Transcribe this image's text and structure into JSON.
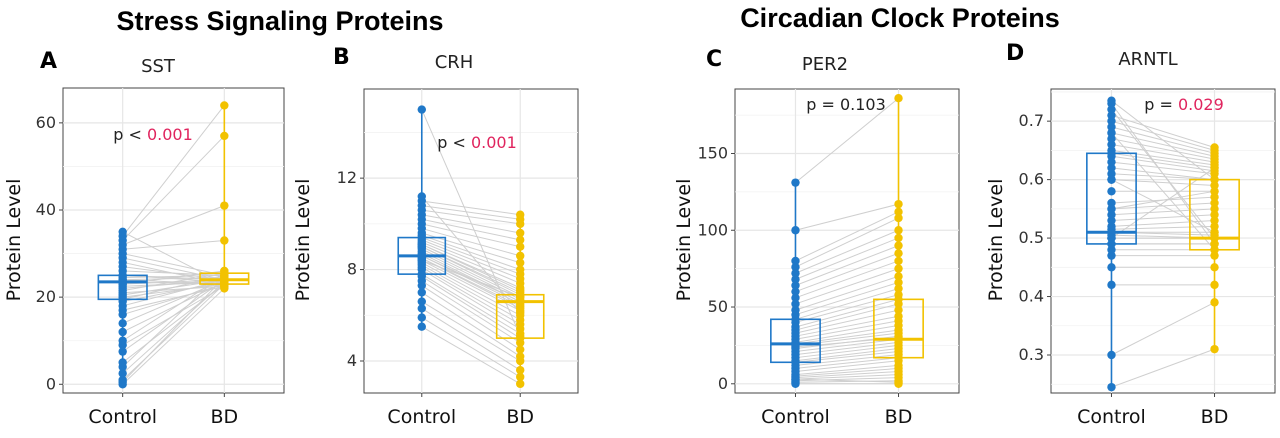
{
  "group_titles": [
    "Stress Signaling Proteins",
    "Circadian Clock Proteins"
  ],
  "colors": {
    "Control": "#1f78c8",
    "BD": "#f2c200",
    "p_sig": "#e0245e",
    "p_text": "#222222",
    "pair_line": "#cfcfcf"
  },
  "chart_data": [
    {
      "type": "box+paired-scatter",
      "panel": "A",
      "title": "SST",
      "xlabel": "",
      "ylabel": "Protein Level",
      "categories": [
        "Control",
        "BD"
      ],
      "ylim": [
        -2,
        68
      ],
      "yticks": [
        0,
        20,
        40,
        60
      ],
      "p_prefix": "p < ",
      "p_value": "0.001",
      "p_significant": true,
      "box": {
        "Control": {
          "min": 0,
          "q1": 19.5,
          "median": 23.5,
          "q3": 25,
          "max": 35
        },
        "BD": {
          "min": 22,
          "q1": 23,
          "median": 24,
          "q3": 25.5,
          "max": 64
        }
      },
      "series": [
        {
          "name": "Control",
          "values": [
            0,
            0.5,
            1,
            2.5,
            4,
            5,
            7.5,
            9,
            10,
            12,
            14,
            16,
            17,
            18,
            19,
            19.5,
            20,
            20.5,
            21,
            21.5,
            22,
            22.5,
            23,
            23,
            23.5,
            24,
            24,
            24.5,
            25,
            25,
            26,
            27,
            28,
            29,
            30,
            31,
            32,
            33,
            34,
            35
          ]
        },
        {
          "name": "BD",
          "values": [
            22,
            24.5,
            23,
            23.5,
            26,
            23,
            24,
            22.5,
            25,
            23.5,
            24,
            23,
            22.5,
            24,
            23.5,
            25,
            23,
            24,
            22.5,
            25.5,
            24,
            23.5,
            24,
            26,
            23,
            24.5,
            23,
            25,
            24,
            23.5,
            25,
            24,
            23,
            24,
            25,
            33,
            41,
            57,
            64,
            23
          ]
        }
      ]
    },
    {
      "type": "box+paired-scatter",
      "panel": "B",
      "title": "CRH",
      "xlabel": "",
      "ylabel": "Protein Level",
      "categories": [
        "Control",
        "BD"
      ],
      "ylim": [
        2.6,
        15.9
      ],
      "yticks": [
        4,
        8,
        12
      ],
      "p_prefix": "p < ",
      "p_value": "0.001",
      "p_significant": true,
      "box": {
        "Control": {
          "min": 5.5,
          "q1": 7.8,
          "median": 8.6,
          "q3": 9.4,
          "max": 15
        },
        "BD": {
          "min": 3,
          "q1": 5,
          "median": 6.6,
          "q3": 6.9,
          "max": 10.4
        }
      },
      "series": [
        {
          "name": "Control",
          "values": [
            5.5,
            5.9,
            6.3,
            6.6,
            7,
            7.3,
            7.5,
            7.7,
            7.8,
            8,
            8.1,
            8.2,
            8.3,
            8.4,
            8.5,
            8.5,
            8.6,
            8.6,
            8.7,
            8.8,
            8.9,
            9,
            9,
            9.1,
            9.2,
            9.3,
            9.4,
            9.5,
            9.6,
            9.8,
            10,
            10.2,
            10.4,
            10.6,
            10.8,
            11,
            11.2,
            15,
            8.4,
            9.1
          ]
        },
        {
          "name": "BD",
          "values": [
            3,
            3.3,
            3.6,
            4,
            4.2,
            4.5,
            4.8,
            5,
            5.2,
            5.4,
            5.6,
            5.8,
            6,
            6.2,
            6.3,
            6.4,
            6.5,
            6.6,
            6.6,
            6.7,
            6.8,
            6.9,
            7,
            7.2,
            7.4,
            7.6,
            7.8,
            8,
            8.3,
            8.6,
            9,
            9.3,
            9.6,
            10,
            10.2,
            10.4,
            6.1,
            5.1,
            6.8,
            7.1
          ]
        }
      ]
    },
    {
      "type": "box+paired-scatter",
      "panel": "C",
      "title": "PER2",
      "xlabel": "",
      "ylabel": "Protein Level",
      "categories": [
        "Control",
        "BD"
      ],
      "ylim": [
        -6,
        192
      ],
      "yticks": [
        0,
        50,
        100,
        150
      ],
      "p_prefix": "p = ",
      "p_value": "0.103",
      "p_significant": false,
      "box": {
        "Control": {
          "min": 0,
          "q1": 14,
          "median": 26,
          "q3": 42,
          "max": 131
        },
        "BD": {
          "min": 0,
          "q1": 17,
          "median": 29,
          "q3": 55,
          "max": 186
        }
      },
      "series": [
        {
          "name": "Control",
          "values": [
            0,
            1,
            2,
            3,
            4,
            5,
            6,
            8,
            10,
            12,
            14,
            15,
            17,
            19,
            21,
            23,
            25,
            26,
            27,
            29,
            31,
            33,
            35,
            37,
            40,
            42,
            45,
            48,
            52,
            56,
            60,
            64,
            68,
            72,
            76,
            80,
            100,
            131,
            3,
            24
          ]
        },
        {
          "name": "BD",
          "values": [
            0,
            2,
            4,
            6,
            8,
            10,
            12,
            15,
            17,
            19,
            21,
            23,
            25,
            27,
            29,
            31,
            33,
            35,
            38,
            41,
            44,
            48,
            52,
            55,
            58,
            62,
            66,
            70,
            75,
            80,
            85,
            90,
            95,
            100,
            108,
            112,
            117,
            186,
            1,
            30
          ]
        }
      ]
    },
    {
      "type": "box+paired-scatter",
      "panel": "D",
      "title": "ARNTL",
      "xlabel": "",
      "ylabel": "Protein Level",
      "categories": [
        "Control",
        "BD"
      ],
      "ylim": [
        0.235,
        0.755
      ],
      "yticks": [
        0.3,
        0.4,
        0.5,
        0.6,
        0.7
      ],
      "p_prefix": "p = ",
      "p_value": "0.029",
      "p_significant": true,
      "box": {
        "Control": {
          "min": 0.245,
          "q1": 0.49,
          "median": 0.51,
          "q3": 0.645,
          "max": 0.735
        },
        "BD": {
          "min": 0.31,
          "q1": 0.48,
          "median": 0.5,
          "q3": 0.6,
          "max": 0.655
        }
      },
      "series": [
        {
          "name": "Control",
          "values": [
            0.245,
            0.3,
            0.42,
            0.45,
            0.47,
            0.48,
            0.49,
            0.49,
            0.5,
            0.5,
            0.505,
            0.51,
            0.51,
            0.515,
            0.52,
            0.53,
            0.54,
            0.55,
            0.56,
            0.58,
            0.6,
            0.61,
            0.62,
            0.63,
            0.64,
            0.645,
            0.65,
            0.66,
            0.67,
            0.68,
            0.69,
            0.7,
            0.71,
            0.72,
            0.73,
            0.735,
            0.5,
            0.6,
            0.55,
            0.68
          ]
        },
        {
          "name": "BD",
          "values": [
            0.31,
            0.39,
            0.42,
            0.45,
            0.47,
            0.48,
            0.49,
            0.49,
            0.5,
            0.5,
            0.5,
            0.505,
            0.51,
            0.52,
            0.53,
            0.54,
            0.55,
            0.56,
            0.57,
            0.58,
            0.59,
            0.6,
            0.6,
            0.61,
            0.615,
            0.62,
            0.625,
            0.63,
            0.635,
            0.64,
            0.645,
            0.65,
            0.655,
            0.5,
            0.49,
            0.6,
            0.62,
            0.51,
            0.58,
            0.48
          ]
        }
      ]
    }
  ]
}
